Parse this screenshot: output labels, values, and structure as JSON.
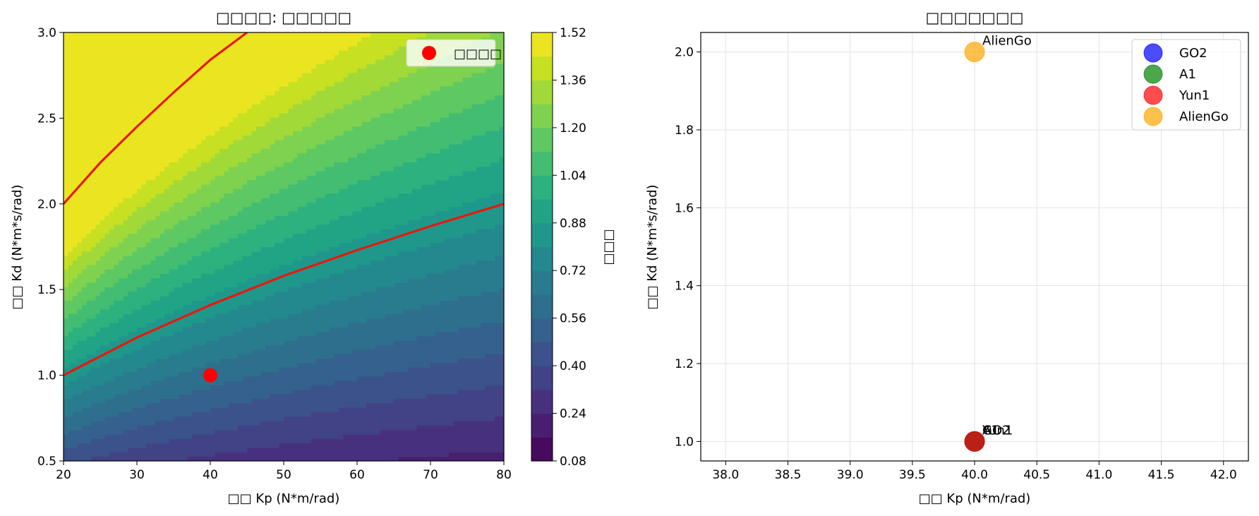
{
  "chart_data": [
    {
      "type": "contour",
      "title": "□□□□: □□□□□",
      "xlabel": "□□ Kp (N*m/rad)",
      "ylabel": "□□ Kd (N*m*s/rad)",
      "xlim": [
        20,
        80
      ],
      "ylim": [
        0.5,
        3.0
      ],
      "x_ticks": [
        "20",
        "30",
        "40",
        "50",
        "60",
        "70",
        "80"
      ],
      "y_ticks": [
        "0.5",
        "1.0",
        "1.5",
        "2.0",
        "2.5",
        "3.0"
      ],
      "colormap": "viridis",
      "color_range": [
        0.08,
        1.52
      ],
      "colorbar_label": "□□□",
      "colorbar_ticks": [
        "0.08",
        "0.24",
        "0.40",
        "0.56",
        "0.72",
        "0.88",
        "1.04",
        "1.20",
        "1.36",
        "1.52"
      ],
      "contour_lines": [
        {
          "level": "upper",
          "color": "#e8180c",
          "points": [
            [
              20,
              2.0
            ],
            [
              25,
              2.24
            ],
            [
              30,
              2.45
            ],
            [
              35,
              2.65
            ],
            [
              40,
              2.84
            ],
            [
              45,
              3.0
            ]
          ]
        },
        {
          "level": "lower",
          "color": "#e8180c",
          "points": [
            [
              20,
              1.0
            ],
            [
              30,
              1.22
            ],
            [
              40,
              1.41
            ],
            [
              50,
              1.58
            ],
            [
              60,
              1.73
            ],
            [
              70,
              1.87
            ],
            [
              80,
              2.0
            ]
          ]
        }
      ],
      "points": [
        {
          "x": 40,
          "y": 1.0,
          "color": "#ff0000"
        }
      ],
      "legend": {
        "entries": [
          {
            "label": "□□□□",
            "color": "#ff0000"
          }
        ],
        "placement": "top-right"
      },
      "grid": false
    },
    {
      "type": "scatter",
      "title": "□□□□□□□",
      "xlabel": "□□ Kp (N*m/rad)",
      "ylabel": "□□ Kd (N*m*s/rad)",
      "xlim": [
        37.8,
        42.2
      ],
      "ylim": [
        0.95,
        2.05
      ],
      "x_ticks": [
        "38.0",
        "38.5",
        "39.0",
        "39.5",
        "40.0",
        "40.5",
        "41.0",
        "41.5",
        "42.0"
      ],
      "y_ticks": [
        "1.0",
        "1.2",
        "1.4",
        "1.6",
        "1.8",
        "2.0"
      ],
      "series": [
        {
          "name": "GO2",
          "color": "#0000ff",
          "x": 40.0,
          "y": 1.0
        },
        {
          "name": "A1",
          "color": "#008000",
          "x": 40.0,
          "y": 1.0
        },
        {
          "name": "Yun1",
          "color": "#ff0000",
          "x": 40.0,
          "y": 1.0
        },
        {
          "name": "AlienGo",
          "color": "#ffa500",
          "x": 40.0,
          "y": 2.0
        }
      ],
      "legend": {
        "placement": "top-right"
      },
      "grid": true
    }
  ]
}
